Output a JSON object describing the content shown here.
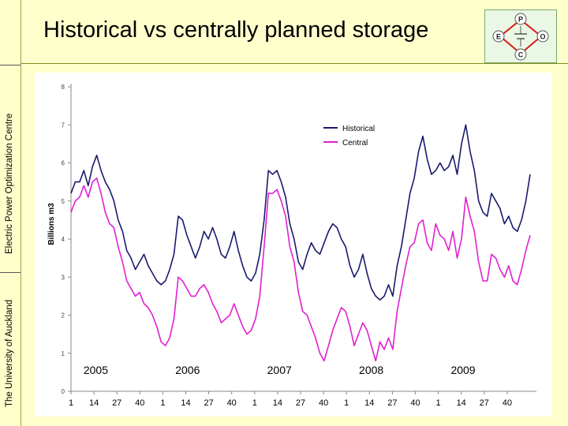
{
  "slide": {
    "title": "Historical vs centrally planned storage",
    "side_labels": [
      "The University of Auckland",
      "Electric Power Optimization Centre"
    ],
    "logo": {
      "letters": [
        "P",
        "E",
        "O",
        "C"
      ],
      "accent": "#d61a1a"
    }
  },
  "chart_data": {
    "type": "line",
    "title": "",
    "xlabel": "",
    "ylabel": "Billions m3",
    "ylim": [
      0,
      8
    ],
    "yticks": [
      0,
      1,
      2,
      3,
      4,
      5,
      6,
      7,
      8
    ],
    "week_ticks": [
      "1",
      "14",
      "27",
      "40"
    ],
    "years": [
      "2005",
      "2006",
      "2007",
      "2008",
      "2009"
    ],
    "legend": {
      "position": "top-right",
      "entries": [
        "Historical",
        "Central"
      ]
    },
    "series": [
      {
        "name": "Historical",
        "color": "#1a1a6e",
        "values": [
          5.2,
          5.5,
          5.5,
          5.8,
          5.4,
          5.9,
          6.2,
          5.8,
          5.5,
          5.3,
          5.0,
          4.5,
          4.2,
          3.7,
          3.5,
          3.2,
          3.4,
          3.6,
          3.3,
          3.1,
          2.9,
          2.8,
          2.9,
          3.2,
          3.6,
          4.6,
          4.5,
          4.1,
          3.8,
          3.5,
          3.8,
          4.2,
          4.0,
          4.3,
          4.0,
          3.6,
          3.5,
          3.8,
          4.2,
          3.7,
          3.3,
          3.0,
          2.9,
          3.1,
          3.6,
          4.5,
          5.8,
          5.7,
          5.8,
          5.5,
          5.1,
          4.4,
          4.0,
          3.4,
          3.2,
          3.6,
          3.9,
          3.7,
          3.6,
          3.9,
          4.2,
          4.4,
          4.3,
          4.0,
          3.8,
          3.3,
          3.0,
          3.2,
          3.6,
          3.1,
          2.7,
          2.5,
          2.4,
          2.5,
          2.8,
          2.5,
          3.3,
          3.8,
          4.5,
          5.2,
          5.6,
          6.3,
          6.7,
          6.1,
          5.7,
          5.8,
          6.0,
          5.8,
          5.9,
          6.2,
          5.7,
          6.5,
          7.0,
          6.3,
          5.8,
          5.0,
          4.7,
          4.6,
          5.2,
          5.0,
          4.8,
          4.4,
          4.6,
          4.3,
          4.2,
          4.5,
          5.0,
          5.7
        ]
      },
      {
        "name": "Central",
        "color": "#e020d0",
        "values": [
          4.7,
          5.0,
          5.1,
          5.4,
          5.1,
          5.5,
          5.6,
          5.2,
          4.7,
          4.4,
          4.3,
          3.8,
          3.4,
          2.9,
          2.7,
          2.5,
          2.6,
          2.3,
          2.2,
          2.0,
          1.7,
          1.3,
          1.2,
          1.4,
          1.9,
          3.0,
          2.9,
          2.7,
          2.5,
          2.5,
          2.7,
          2.8,
          2.6,
          2.3,
          2.1,
          1.8,
          1.9,
          2.0,
          2.3,
          2.0,
          1.7,
          1.5,
          1.6,
          1.9,
          2.5,
          3.8,
          5.2,
          5.2,
          5.3,
          5.0,
          4.6,
          3.8,
          3.4,
          2.6,
          2.1,
          2.0,
          1.7,
          1.4,
          1.0,
          0.8,
          1.2,
          1.6,
          1.9,
          2.2,
          2.1,
          1.7,
          1.2,
          1.5,
          1.8,
          1.6,
          1.2,
          0.8,
          1.3,
          1.1,
          1.4,
          1.1,
          2.1,
          2.7,
          3.3,
          3.8,
          3.9,
          4.4,
          4.5,
          3.9,
          3.7,
          4.4,
          4.1,
          4.0,
          3.7,
          4.2,
          3.5,
          4.0,
          5.1,
          4.6,
          4.2,
          3.4,
          2.9,
          2.9,
          3.6,
          3.5,
          3.2,
          3.0,
          3.3,
          2.9,
          2.8,
          3.2,
          3.7,
          4.1
        ]
      }
    ]
  }
}
